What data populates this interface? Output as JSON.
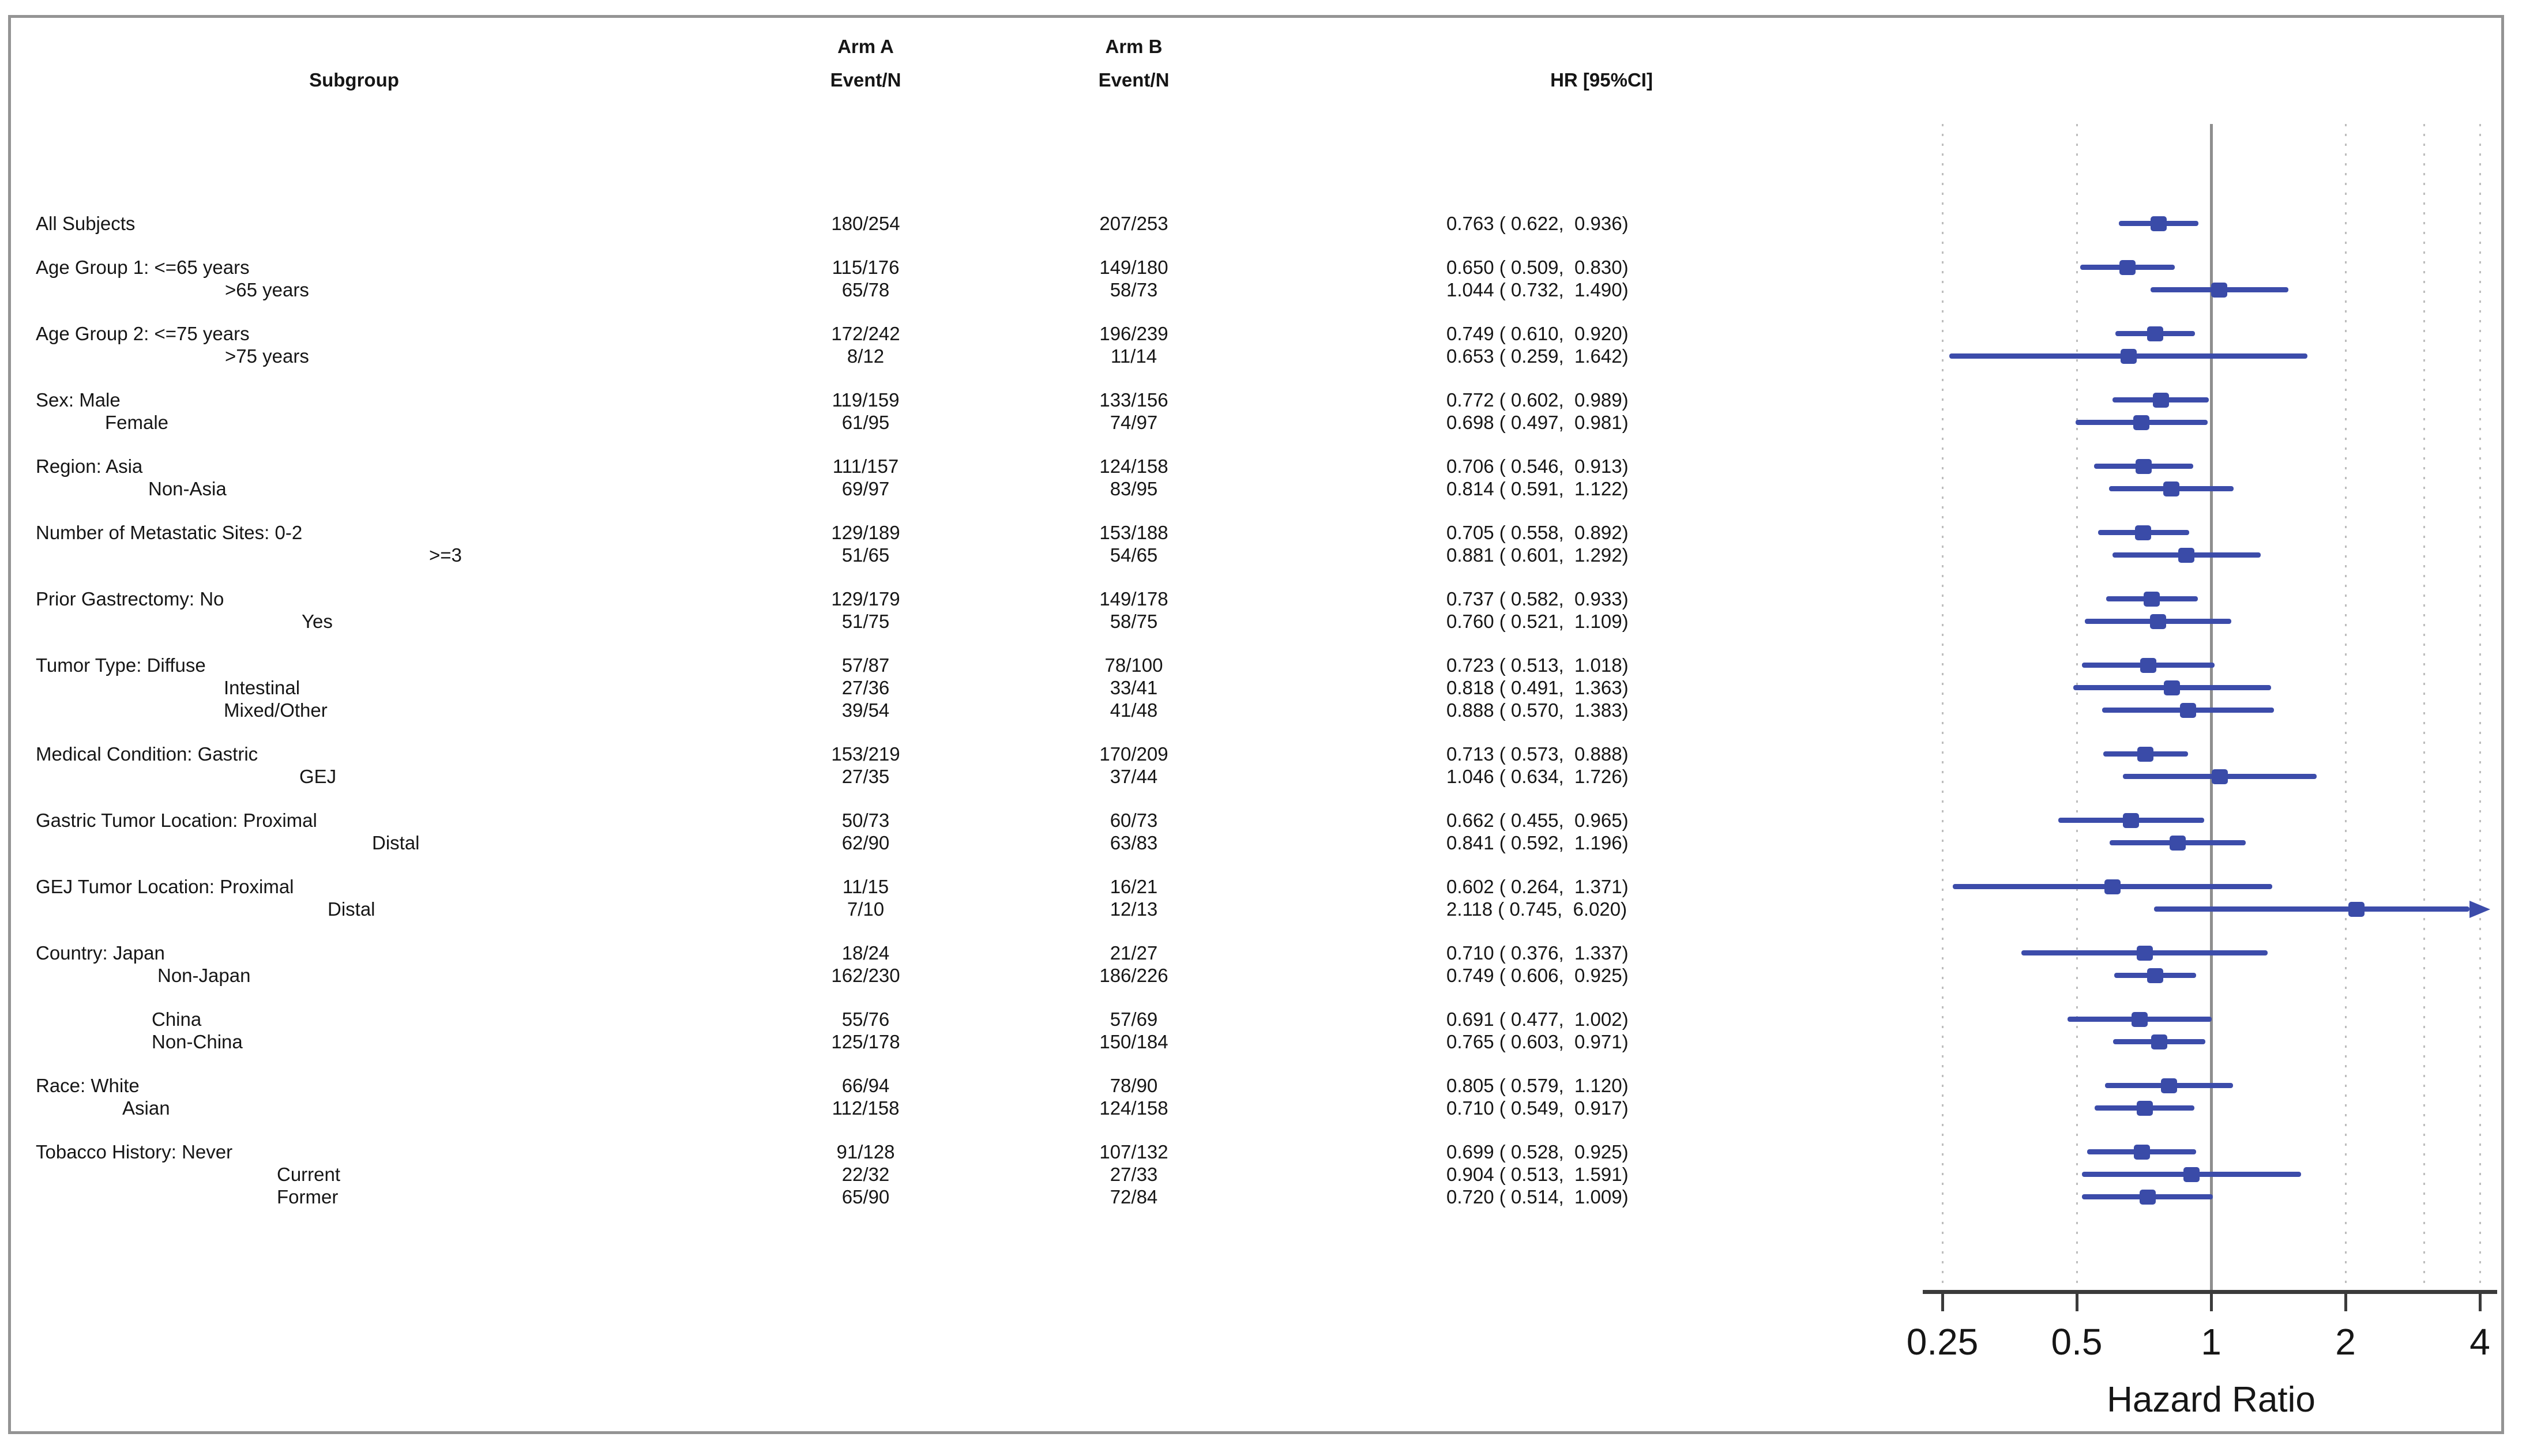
{
  "figure": {
    "columns": {
      "subgroup": "Subgroup",
      "arm_a_line1": "Arm A",
      "arm_a_line2": "Event/N",
      "arm_b_line1": "Arm B",
      "arm_b_line2": "Event/N",
      "hr": "HR [95%CI]"
    },
    "axis": {
      "label": "Hazard Ratio",
      "ticks": [
        0.25,
        0.5,
        1,
        2,
        4
      ],
      "tick_labels": [
        "0.25",
        "0.5",
        "1",
        "2",
        "4"
      ],
      "dotted_gridlines": [
        0.25,
        0.5,
        2,
        3,
        4
      ],
      "reference_line": 1,
      "min": 0.25,
      "max": 4
    },
    "colors": {
      "marker": "#3a4ba8",
      "ci_line": "#3c4caa",
      "ref_line": "#8f8f8f",
      "grid_dot": "#bdbdbd",
      "axis_line": "#3b3b3b",
      "text": "#161616",
      "border": "#949494"
    }
  },
  "chart_data": {
    "type": "forest",
    "title": "",
    "xlabel": "Hazard Ratio",
    "x_scale": "log2",
    "xlim": [
      0.25,
      4
    ],
    "legend": "none",
    "grid": "vertical-dotted",
    "groups": [
      {
        "rows": [
          {
            "label": "All Subjects",
            "indent": 62,
            "arm_a": "180/254",
            "arm_b": "207/253",
            "hr": 0.763,
            "ci_low": 0.622,
            "ci_high": 0.936
          }
        ]
      },
      {
        "rows": [
          {
            "label": "Age Group 1: <=65 years",
            "indent": 62,
            "arm_a": "115/176",
            "arm_b": "149/180",
            "hr": 0.65,
            "ci_low": 0.509,
            "ci_high": 0.83
          },
          {
            "label": ">65 years",
            "indent": 390,
            "arm_a": "65/78",
            "arm_b": "58/73",
            "hr": 1.044,
            "ci_low": 0.732,
            "ci_high": 1.49
          }
        ]
      },
      {
        "rows": [
          {
            "label": "Age Group 2: <=75 years",
            "indent": 62,
            "arm_a": "172/242",
            "arm_b": "196/239",
            "hr": 0.749,
            "ci_low": 0.61,
            "ci_high": 0.92
          },
          {
            "label": ">75 years",
            "indent": 390,
            "arm_a": "8/12",
            "arm_b": "11/14",
            "hr": 0.653,
            "ci_low": 0.259,
            "ci_high": 1.642
          }
        ]
      },
      {
        "rows": [
          {
            "label": "Sex: Male",
            "indent": 62,
            "arm_a": "119/159",
            "arm_b": "133/156",
            "hr": 0.772,
            "ci_low": 0.602,
            "ci_high": 0.989
          },
          {
            "label": "Female",
            "indent": 182,
            "arm_a": "61/95",
            "arm_b": "74/97",
            "hr": 0.698,
            "ci_low": 0.497,
            "ci_high": 0.981
          }
        ]
      },
      {
        "rows": [
          {
            "label": "Region: Asia",
            "indent": 62,
            "arm_a": "111/157",
            "arm_b": "124/158",
            "hr": 0.706,
            "ci_low": 0.546,
            "ci_high": 0.913
          },
          {
            "label": "Non-Asia",
            "indent": 257,
            "arm_a": "69/97",
            "arm_b": "83/95",
            "hr": 0.814,
            "ci_low": 0.591,
            "ci_high": 1.122
          }
        ]
      },
      {
        "rows": [
          {
            "label": "Number of Metastatic Sites: 0-2",
            "indent": 62,
            "arm_a": "129/189",
            "arm_b": "153/188",
            "hr": 0.705,
            "ci_low": 0.558,
            "ci_high": 0.892
          },
          {
            "label": ">=3",
            "indent": 744,
            "arm_a": "51/65",
            "arm_b": "54/65",
            "hr": 0.881,
            "ci_low": 0.601,
            "ci_high": 1.292
          }
        ]
      },
      {
        "rows": [
          {
            "label": "Prior Gastrectomy: No",
            "indent": 62,
            "arm_a": "129/179",
            "arm_b": "149/178",
            "hr": 0.737,
            "ci_low": 0.582,
            "ci_high": 0.933
          },
          {
            "label": "Yes",
            "indent": 523,
            "arm_a": "51/75",
            "arm_b": "58/75",
            "hr": 0.76,
            "ci_low": 0.521,
            "ci_high": 1.109
          }
        ]
      },
      {
        "rows": [
          {
            "label": "Tumor Type: Diffuse",
            "indent": 62,
            "arm_a": "57/87",
            "arm_b": "78/100",
            "hr": 0.723,
            "ci_low": 0.513,
            "ci_high": 1.018
          },
          {
            "label": "Intestinal",
            "indent": 388,
            "arm_a": "27/36",
            "arm_b": "33/41",
            "hr": 0.818,
            "ci_low": 0.491,
            "ci_high": 1.363
          },
          {
            "label": "Mixed/Other",
            "indent": 388,
            "arm_a": "39/54",
            "arm_b": "41/48",
            "hr": 0.888,
            "ci_low": 0.57,
            "ci_high": 1.383
          }
        ]
      },
      {
        "rows": [
          {
            "label": "Medical Condition: Gastric",
            "indent": 62,
            "arm_a": "153/219",
            "arm_b": "170/209",
            "hr": 0.713,
            "ci_low": 0.573,
            "ci_high": 0.888
          },
          {
            "label": "GEJ",
            "indent": 519,
            "arm_a": "27/35",
            "arm_b": "37/44",
            "hr": 1.046,
            "ci_low": 0.634,
            "ci_high": 1.726
          }
        ]
      },
      {
        "rows": [
          {
            "label": "Gastric Tumor Location: Proximal",
            "indent": 62,
            "arm_a": "50/73",
            "arm_b": "60/73",
            "hr": 0.662,
            "ci_low": 0.455,
            "ci_high": 0.965
          },
          {
            "label": "Distal",
            "indent": 645,
            "arm_a": "62/90",
            "arm_b": "63/83",
            "hr": 0.841,
            "ci_low": 0.592,
            "ci_high": 1.196
          }
        ]
      },
      {
        "rows": [
          {
            "label": "GEJ Tumor Location: Proximal",
            "indent": 62,
            "arm_a": "11/15",
            "arm_b": "16/21",
            "hr": 0.602,
            "ci_low": 0.264,
            "ci_high": 1.371
          },
          {
            "label": "Distal",
            "indent": 568,
            "arm_a": "7/10",
            "arm_b": "12/13",
            "hr": 2.118,
            "ci_low": 0.745,
            "ci_high": 6.02
          }
        ]
      },
      {
        "rows": [
          {
            "label": "Country: Japan",
            "indent": 62,
            "arm_a": "18/24",
            "arm_b": "21/27",
            "hr": 0.71,
            "ci_low": 0.376,
            "ci_high": 1.337
          },
          {
            "label": "Non-Japan",
            "indent": 273,
            "arm_a": "162/230",
            "arm_b": "186/226",
            "hr": 0.749,
            "ci_low": 0.606,
            "ci_high": 0.925
          }
        ]
      },
      {
        "rows": [
          {
            "label": "China",
            "indent": 263,
            "arm_a": "55/76",
            "arm_b": "57/69",
            "hr": 0.691,
            "ci_low": 0.477,
            "ci_high": 1.002
          },
          {
            "label": "Non-China",
            "indent": 263,
            "arm_a": "125/178",
            "arm_b": "150/184",
            "hr": 0.765,
            "ci_low": 0.603,
            "ci_high": 0.971
          }
        ]
      },
      {
        "rows": [
          {
            "label": "Race: White",
            "indent": 62,
            "arm_a": "66/94",
            "arm_b": "78/90",
            "hr": 0.805,
            "ci_low": 0.579,
            "ci_high": 1.12
          },
          {
            "label": "Asian",
            "indent": 212,
            "arm_a": "112/158",
            "arm_b": "124/158",
            "hr": 0.71,
            "ci_low": 0.549,
            "ci_high": 0.917
          }
        ]
      },
      {
        "rows": [
          {
            "label": "Tobacco History: Never",
            "indent": 62,
            "arm_a": "91/128",
            "arm_b": "107/132",
            "hr": 0.699,
            "ci_low": 0.528,
            "ci_high": 0.925
          },
          {
            "label": "Current",
            "indent": 480,
            "arm_a": "22/32",
            "arm_b": "27/33",
            "hr": 0.904,
            "ci_low": 0.513,
            "ci_high": 1.591
          },
          {
            "label": "Former",
            "indent": 480,
            "arm_a": "65/90",
            "arm_b": "72/84",
            "hr": 0.72,
            "ci_low": 0.514,
            "ci_high": 1.009
          }
        ]
      }
    ]
  }
}
